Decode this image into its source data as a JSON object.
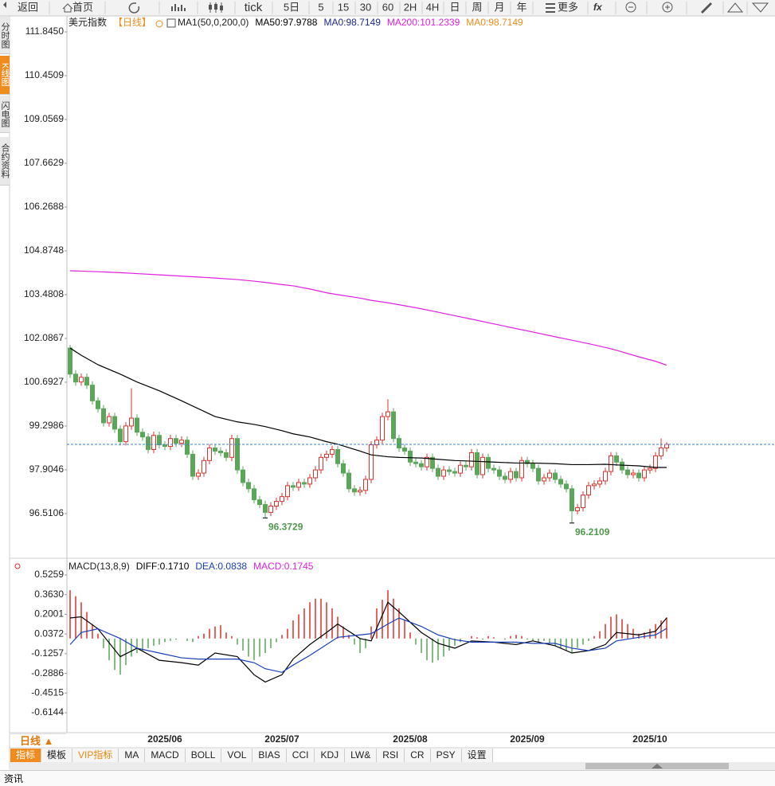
{
  "toolbar": {
    "buttons": [
      "返回",
      "首页",
      "tick",
      "5日",
      "5",
      "15",
      "30",
      "60",
      "2H",
      "4H",
      "日",
      "周",
      "月",
      "年",
      "更多"
    ]
  },
  "side_tabs": [
    "分时图",
    "K线图",
    "闪电图",
    "合约资料"
  ],
  "chart_data": [
    {
      "type": "candlestick",
      "title": "美元指数",
      "period": "【日线】",
      "indicator": "MA1(50,0,200,0)",
      "categories": [
        null,
        null,
        null,
        null,
        null,
        null,
        null,
        null,
        null,
        null,
        null,
        null,
        null,
        null,
        null,
        null,
        null,
        "2025/06",
        null,
        null,
        null,
        null,
        null,
        null,
        null,
        null,
        null,
        null,
        null,
        null,
        null,
        null,
        null,
        null,
        null,
        null,
        null,
        null,
        "2025/07",
        null,
        null,
        null,
        null,
        null,
        null,
        null,
        null,
        null,
        null,
        null,
        null,
        null,
        null,
        null,
        null,
        null,
        null,
        null,
        null,
        null,
        null,
        "2025/08",
        null,
        null,
        null,
        null,
        null,
        null,
        null,
        null,
        null,
        null,
        null,
        null,
        null,
        null,
        null,
        null,
        null,
        null,
        null,
        null,
        "2025/09",
        null,
        null,
        null,
        null,
        null,
        null,
        null,
        null,
        null,
        null,
        null,
        null,
        null,
        null,
        null,
        null,
        null,
        null,
        null,
        null,
        null,
        "2025/10",
        null,
        null,
        null
      ],
      "open": [
        101.78,
        100.95,
        100.7,
        100.85,
        100.6,
        100.1,
        99.85,
        99.4,
        99.6,
        99.2,
        98.8,
        99.3,
        99.55,
        99.1,
        98.95,
        98.55,
        99.0,
        98.7,
        98.65,
        98.9,
        98.75,
        98.85,
        98.4,
        97.7,
        97.8,
        98.2,
        98.6,
        98.5,
        98.45,
        98.3,
        98.9,
        97.9,
        97.5,
        97.3,
        96.95,
        96.8,
        96.55,
        96.75,
        96.9,
        97.05,
        97.4,
        97.35,
        97.5,
        97.45,
        97.65,
        97.9,
        98.3,
        98.4,
        98.55,
        98.1,
        97.8,
        97.3,
        97.2,
        97.25,
        97.6,
        98.7,
        98.85,
        99.6,
        99.75,
        98.9,
        98.6,
        98.5,
        98.15,
        98.1,
        98.0,
        98.3,
        97.95,
        97.7,
        97.9,
        97.85,
        97.8,
        98.05,
        98.0,
        98.45,
        97.75,
        98.3,
        97.95,
        97.9,
        97.7,
        97.6,
        97.85,
        97.65,
        98.2,
        98.1,
        97.95,
        97.55,
        97.65,
        97.8,
        97.6,
        97.45,
        97.3,
        96.6,
        96.7,
        97.1,
        97.4,
        97.45,
        97.55,
        97.85,
        98.35,
        98.15,
        97.9,
        97.75,
        97.8,
        97.65,
        97.9,
        97.95,
        98.35,
        98.6
      ],
      "high": [
        101.88,
        101.07,
        100.97,
        100.97,
        100.72,
        100.22,
        99.97,
        99.72,
        99.72,
        99.32,
        99.42,
        100.5,
        99.67,
        99.22,
        99.07,
        99.12,
        99.12,
        98.82,
        99.02,
        99.02,
        98.97,
        98.97,
        98.52,
        97.92,
        98.32,
        98.72,
        98.72,
        98.62,
        98.57,
        99.02,
        99.02,
        98.02,
        97.62,
        97.42,
        97.07,
        96.92,
        96.87,
        97.02,
        97.17,
        97.52,
        97.52,
        97.62,
        97.62,
        97.77,
        98.02,
        98.42,
        98.52,
        98.67,
        98.67,
        98.22,
        97.92,
        97.42,
        97.37,
        97.72,
        98.82,
        98.97,
        99.72,
        100.15,
        99.87,
        99.02,
        98.72,
        98.62,
        98.27,
        98.22,
        98.42,
        98.42,
        98.07,
        98.02,
        98.02,
        97.97,
        98.17,
        98.17,
        98.57,
        98.57,
        98.42,
        98.42,
        98.07,
        98.02,
        97.82,
        97.97,
        97.97,
        98.32,
        98.32,
        98.22,
        98.07,
        97.77,
        97.92,
        97.92,
        97.72,
        97.57,
        97.42,
        96.82,
        97.22,
        97.52,
        97.57,
        97.67,
        97.97,
        98.47,
        98.47,
        98.27,
        98.02,
        97.92,
        97.92,
        98.02,
        98.07,
        98.47,
        98.9,
        98.78
      ],
      "low": [
        100.83,
        100.58,
        100.58,
        100.48,
        99.98,
        99.73,
        99.28,
        99.28,
        99.08,
        98.68,
        98.68,
        99.18,
        98.98,
        98.83,
        98.43,
        98.43,
        98.58,
        98.53,
        98.53,
        98.63,
        98.63,
        98.28,
        97.58,
        97.58,
        97.68,
        98.08,
        98.38,
        98.33,
        98.18,
        98.18,
        97.78,
        97.38,
        97.18,
        96.83,
        96.68,
        96.3729,
        96.43,
        96.63,
        96.78,
        96.93,
        97.23,
        97.23,
        97.33,
        97.33,
        97.53,
        97.78,
        98.18,
        98.28,
        97.98,
        97.68,
        97.18,
        97.08,
        97.08,
        97.13,
        97.48,
        98.58,
        98.73,
        99.48,
        98.78,
        98.48,
        98.38,
        98.03,
        97.98,
        97.88,
        97.88,
        97.83,
        97.58,
        97.58,
        97.73,
        97.68,
        97.68,
        97.88,
        97.88,
        97.63,
        97.63,
        97.83,
        97.78,
        97.58,
        97.48,
        97.48,
        97.53,
        97.53,
        97.98,
        97.83,
        97.43,
        97.43,
        97.53,
        97.48,
        97.33,
        97.18,
        96.2109,
        96.48,
        96.58,
        96.98,
        97.28,
        97.33,
        97.43,
        97.73,
        98.03,
        97.78,
        97.63,
        97.63,
        97.53,
        97.53,
        97.78,
        97.83,
        98.23,
        98.48
      ],
      "close": [
        100.95,
        100.7,
        100.85,
        100.6,
        100.1,
        99.85,
        99.4,
        99.6,
        99.2,
        98.8,
        99.3,
        99.55,
        99.1,
        98.95,
        98.55,
        99.0,
        98.7,
        98.65,
        98.9,
        98.75,
        98.85,
        98.4,
        97.7,
        97.8,
        98.2,
        98.6,
        98.5,
        98.45,
        98.3,
        98.9,
        97.9,
        97.5,
        97.3,
        96.95,
        96.8,
        96.55,
        96.75,
        96.9,
        97.05,
        97.4,
        97.35,
        97.5,
        97.45,
        97.65,
        97.9,
        98.3,
        98.4,
        98.55,
        98.1,
        97.8,
        97.3,
        97.2,
        97.25,
        97.6,
        98.7,
        98.85,
        99.6,
        99.75,
        98.9,
        98.6,
        98.5,
        98.15,
        98.1,
        98.0,
        98.3,
        97.95,
        97.7,
        97.9,
        97.85,
        97.8,
        98.05,
        98.0,
        98.45,
        97.75,
        98.3,
        97.95,
        97.9,
        97.7,
        97.6,
        97.85,
        97.65,
        98.2,
        98.1,
        97.95,
        97.55,
        97.65,
        97.8,
        97.6,
        97.45,
        97.3,
        96.6,
        96.7,
        97.1,
        97.4,
        97.45,
        97.55,
        97.85,
        98.35,
        98.15,
        97.9,
        97.75,
        97.8,
        97.65,
        97.9,
        97.95,
        98.35,
        98.6,
        98.7149
      ],
      "low_labels": [
        null,
        null,
        null,
        null,
        null,
        null,
        null,
        null,
        null,
        null,
        null,
        null,
        null,
        null,
        null,
        null,
        null,
        null,
        null,
        null,
        null,
        null,
        null,
        null,
        null,
        null,
        null,
        null,
        null,
        null,
        null,
        null,
        null,
        null,
        null,
        "96.3729",
        null,
        null,
        null,
        null,
        null,
        null,
        null,
        null,
        null,
        null,
        null,
        null,
        null,
        null,
        null,
        null,
        null,
        null,
        null,
        null,
        null,
        null,
        null,
        null,
        null,
        null,
        null,
        null,
        null,
        null,
        null,
        null,
        null,
        null,
        null,
        null,
        null,
        null,
        null,
        null,
        null,
        null,
        null,
        null,
        null,
        null,
        null,
        null,
        null,
        null,
        null,
        null,
        null,
        null,
        "96.2109",
        null,
        null,
        null,
        null,
        null,
        null,
        null,
        null,
        null,
        null,
        null,
        null,
        null,
        null,
        null,
        null,
        null
      ],
      "up_color": "#e0312c",
      "down_color": "#5aa75a",
      "label_color": "#4f9a4f",
      "last_price_color": "#3b7fd4",
      "series": [
        {
          "color": "#000000",
          "x": [
            0,
            2,
            5,
            9,
            12,
            16,
            20,
            23,
            26,
            30,
            33,
            35,
            38,
            40,
            43,
            46,
            48,
            52,
            54,
            57,
            59,
            63,
            66,
            69,
            72,
            76,
            80,
            83,
            87,
            90,
            93,
            96,
            98,
            102,
            105,
            107
          ],
          "values": [
            101.78,
            101.55,
            101.25,
            100.95,
            100.7,
            100.42,
            100.1,
            99.85,
            99.6,
            99.43,
            99.35,
            99.28,
            99.15,
            99.05,
            98.95,
            98.8,
            98.72,
            98.5,
            98.38,
            98.32,
            98.3,
            98.28,
            98.24,
            98.2,
            98.18,
            98.15,
            98.12,
            98.12,
            98.1,
            98.07,
            98.07,
            98.08,
            98.06,
            98.03,
            97.98,
            97.9788
          ]
        },
        {
          "color": "#e020e0",
          "x": [
            0,
            2,
            5,
            9,
            12,
            16,
            20,
            23,
            26,
            30,
            33,
            35,
            38,
            40,
            43,
            46,
            48,
            52,
            54,
            57,
            59,
            63,
            66,
            69,
            72,
            76,
            80,
            83,
            87,
            90,
            93,
            96,
            98,
            102,
            105,
            107
          ],
          "values": [
            104.24,
            104.23,
            104.21,
            104.18,
            104.15,
            104.11,
            104.07,
            104.04,
            104.01,
            103.96,
            103.91,
            103.87,
            103.8,
            103.76,
            103.66,
            103.54,
            103.48,
            103.37,
            103.3,
            103.22,
            103.16,
            103.03,
            102.92,
            102.81,
            102.7,
            102.55,
            102.4,
            102.29,
            102.14,
            102.03,
            101.92,
            101.8,
            101.71,
            101.5,
            101.36,
            101.2339
          ]
        }
      ],
      "legend": [
        {
          "name": "MA50:97.9788",
          "color": "#000000"
        },
        {
          "name": "MA0:98.7149",
          "color": "#1c2a8c"
        },
        {
          "name": "MA200:101.2339",
          "color": "#e020e0"
        },
        {
          "name": "MA0:98.7149",
          "color": "#f08c1e"
        }
      ],
      "ylim": [
        95.115,
        112.352
      ],
      "yticks": [
        {
          "value": 111.845,
          "label": "111.8450"
        },
        110.4509,
        109.0569,
        107.6629,
        106.2688,
        104.8748,
        103.4808,
        102.0867,
        100.6927,
        99.2986,
        97.9046,
        96.5106
      ],
      "grid": false
    },
    {
      "type": "macd",
      "title": "MACD(13,8,9)",
      "series": [
        {
          "name": "DIFF:0.1710",
          "color": "#000000",
          "x": [
            0,
            2,
            5,
            9,
            12,
            16,
            20,
            23,
            26,
            30,
            33,
            35,
            38,
            40,
            43,
            46,
            48,
            52,
            54,
            57,
            59,
            63,
            66,
            69,
            72,
            76,
            80,
            83,
            87,
            90,
            93,
            96,
            98,
            102,
            105,
            107
          ],
          "values": [
            0.17,
            0.18,
            0.08,
            -0.15,
            -0.08,
            -0.18,
            -0.2,
            -0.22,
            -0.12,
            -0.15,
            -0.3,
            -0.36,
            -0.3,
            -0.17,
            -0.05,
            0.05,
            0.12,
            0.0,
            -0.02,
            0.3,
            0.22,
            0.05,
            -0.04,
            -0.08,
            -0.02,
            -0.03,
            -0.05,
            -0.02,
            -0.06,
            -0.12,
            -0.1,
            -0.05,
            0.05,
            0.03,
            0.06,
            0.171
          ]
        },
        {
          "name": "DEA:0.0838",
          "color": "#1a3fb8",
          "x": [
            0,
            2,
            5,
            9,
            12,
            16,
            20,
            23,
            26,
            30,
            33,
            35,
            38,
            40,
            43,
            46,
            48,
            52,
            54,
            57,
            59,
            63,
            66,
            69,
            72,
            76,
            80,
            83,
            87,
            90,
            93,
            96,
            98,
            102,
            105,
            107
          ],
          "values": [
            -0.05,
            0.05,
            0.08,
            0.0,
            -0.08,
            -0.12,
            -0.16,
            -0.17,
            -0.17,
            -0.17,
            -0.2,
            -0.25,
            -0.28,
            -0.22,
            -0.14,
            -0.05,
            0.01,
            0.03,
            0.04,
            0.12,
            0.17,
            0.1,
            0.03,
            -0.01,
            -0.03,
            -0.03,
            -0.03,
            -0.04,
            -0.04,
            -0.08,
            -0.1,
            -0.08,
            -0.02,
            0.01,
            0.03,
            0.0838
          ]
        },
        {
          "name": "MACD:0.1745",
          "color": "#e020e0",
          "type": "bar",
          "up_color": "#e0312c",
          "down_color": "#5aa75a",
          "values": [
            0.4,
            0.35,
            0.3,
            0.22,
            0.12,
            0.04,
            -0.08,
            -0.18,
            -0.26,
            -0.3,
            -0.22,
            -0.15,
            -0.12,
            -0.1,
            -0.08,
            -0.06,
            -0.05,
            -0.03,
            -0.02,
            -0.01,
            0.0,
            -0.02,
            -0.03,
            0.02,
            0.04,
            0.08,
            0.1,
            0.11,
            0.05,
            0.02,
            -0.05,
            -0.1,
            -0.15,
            -0.18,
            -0.15,
            -0.12,
            -0.08,
            -0.03,
            0.03,
            0.08,
            0.15,
            0.2,
            0.25,
            0.3,
            0.33,
            0.33,
            0.3,
            0.25,
            0.18,
            0.1,
            0.03,
            -0.05,
            -0.12,
            -0.08,
            0.1,
            0.25,
            0.32,
            0.4,
            0.33,
            0.25,
            0.15,
            0.05,
            -0.05,
            -0.12,
            -0.18,
            -0.2,
            -0.18,
            -0.15,
            -0.1,
            -0.06,
            -0.03,
            0.0,
            0.02,
            0.01,
            -0.01,
            0.02,
            0.01,
            0.0,
            -0.01,
            0.02,
            0.03,
            0.02,
            -0.01,
            -0.02,
            -0.03,
            -0.02,
            -0.04,
            -0.06,
            -0.08,
            -0.1,
            -0.12,
            -0.08,
            -0.05,
            -0.02,
            0.02,
            0.06,
            0.12,
            0.18,
            0.2,
            0.16,
            0.12,
            0.08,
            0.04,
            0.05,
            0.08,
            0.12,
            0.15,
            0.1745
          ]
        }
      ],
      "ylim": [
        -0.746,
        0.638
      ],
      "yticks": [
        0.5259,
        {
          "value": 0.363,
          "label": "0.3630"
        },
        0.2001,
        0.0372,
        -0.1257,
        -0.2886,
        -0.4515,
        -0.6144
      ],
      "grid": false
    }
  ],
  "period_button": "日线 ▲",
  "indicator_tabs": [
    "指标",
    "模板",
    "VIP指标",
    "MA",
    "MACD",
    "BOLL",
    "VOL",
    "BIAS",
    "CCI",
    "KDJ",
    "LW&",
    "RSI",
    "CR",
    "PSY",
    "设置"
  ],
  "footer_tab": "资讯"
}
